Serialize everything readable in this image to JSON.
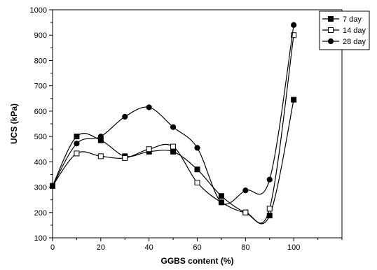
{
  "chart_data": {
    "type": "line",
    "title": "",
    "xlabel": "GGBS content (%)",
    "ylabel": "UCS (kPa)",
    "xlim": [
      0,
      120
    ],
    "ylim": [
      100,
      1000
    ],
    "x_ticks": [
      0,
      20,
      40,
      60,
      80,
      100
    ],
    "y_ticks": [
      100,
      200,
      300,
      400,
      500,
      600,
      700,
      800,
      900,
      1000
    ],
    "smoothed": true,
    "grid": false,
    "legend_position": "top-right",
    "series": [
      {
        "name": "7 day",
        "marker": "filled-square",
        "color": "#000000",
        "x": [
          0,
          10,
          20,
          30,
          40,
          50,
          60,
          70,
          80,
          90,
          100
        ],
        "y": [
          305,
          500,
          485,
          422,
          440,
          440,
          370,
          265,
          200,
          188,
          645
        ]
      },
      {
        "name": "14 day",
        "marker": "open-square",
        "color": "#000000",
        "x": [
          0,
          10,
          20,
          30,
          40,
          50,
          60,
          70,
          80,
          90,
          100
        ],
        "y": [
          305,
          433,
          422,
          415,
          450,
          460,
          318,
          240,
          200,
          215,
          900
        ]
      },
      {
        "name": "28 day",
        "marker": "filled-circle",
        "color": "#000000",
        "x": [
          0,
          10,
          20,
          30,
          40,
          50,
          60,
          70,
          80,
          90,
          100
        ],
        "y": [
          305,
          472,
          500,
          578,
          615,
          537,
          455,
          240,
          287,
          330,
          940
        ]
      }
    ]
  }
}
